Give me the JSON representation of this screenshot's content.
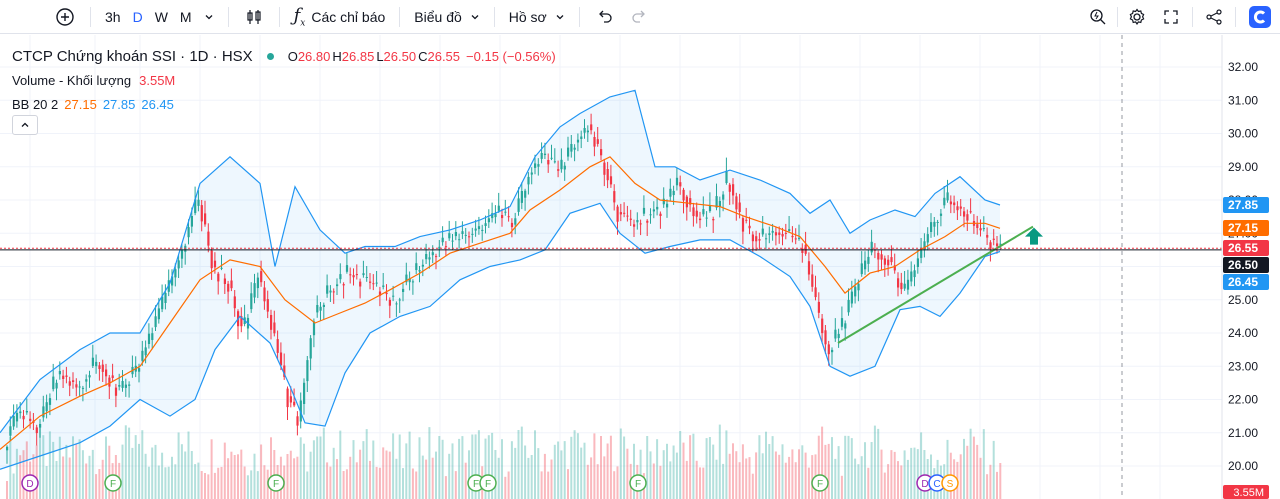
{
  "toolbar": {
    "intervals": [
      "3h",
      "D",
      "W",
      "M"
    ],
    "active_interval": "D",
    "indicators_label": "Các chỉ báo",
    "chart_type_label": "Biểu đồ",
    "profile_label": "Hồ sơ"
  },
  "legend": {
    "title": "CTCP Chứng khoán SSI · 1D · HSX",
    "o_label": "O",
    "o_value": "26.80",
    "h_label": "H",
    "h_value": "26.85",
    "l_label": "L",
    "l_value": "26.50",
    "c_label": "C",
    "c_value": "26.55",
    "change": "−0.15 (−0.56%)",
    "volume_label": "Volume - Khối lượng",
    "volume_value": "3.55M",
    "bb_label": "BB 20 2",
    "bb_mid": "27.15",
    "bb_upper": "27.85",
    "bb_lower": "26.45"
  },
  "colors": {
    "up": "#26a69a",
    "down": "#f23645",
    "bb_band": "#2196f3",
    "bb_basis": "#ff6d00",
    "trendline": "#4caf50",
    "arrow": "#089981"
  },
  "chart_data": {
    "type": "candlestick",
    "ylim": [
      19.8,
      32.4
    ],
    "yticks": [
      "32.00",
      "31.00",
      "30.00",
      "29.00",
      "28.00",
      "27.00",
      "26.00",
      "25.00",
      "24.00",
      "23.00",
      "22.00",
      "21.00",
      "20.00"
    ],
    "price_tags": [
      {
        "label": "27.85",
        "value": 27.85,
        "color": "#2196f3"
      },
      {
        "label": "27.15",
        "value": 27.15,
        "color": "#ff6d00"
      },
      {
        "label": "26.55",
        "value": 26.55,
        "color": "#f23645"
      },
      {
        "label": "26.50",
        "value": 26.5,
        "color": "#131722"
      },
      {
        "label": "26.45",
        "value": 26.45,
        "color": "#2196f3"
      }
    ],
    "volume_tag": "3.55M",
    "close_path": [
      [
        0,
        20.2
      ],
      [
        20,
        21.6
      ],
      [
        40,
        21.2
      ],
      [
        60,
        22.8
      ],
      [
        80,
        22.4
      ],
      [
        100,
        23.2
      ],
      [
        120,
        22.2
      ],
      [
        140,
        23.0
      ],
      [
        160,
        24.5
      ],
      [
        180,
        26.2
      ],
      [
        200,
        28.0
      ],
      [
        215,
        26.0
      ],
      [
        230,
        25.5
      ],
      [
        245,
        24.0
      ],
      [
        260,
        25.8
      ],
      [
        275,
        24.0
      ],
      [
        290,
        22.0
      ],
      [
        300,
        21.3
      ],
      [
        315,
        24.5
      ],
      [
        330,
        25.3
      ],
      [
        350,
        25.8
      ],
      [
        370,
        25.5
      ],
      [
        395,
        25.0
      ],
      [
        420,
        26.0
      ],
      [
        440,
        26.6
      ],
      [
        460,
        26.9
      ],
      [
        480,
        27.1
      ],
      [
        500,
        27.6
      ],
      [
        515,
        27.3
      ],
      [
        530,
        28.8
      ],
      [
        545,
        29.3
      ],
      [
        560,
        28.8
      ],
      [
        575,
        29.7
      ],
      [
        590,
        30.2
      ],
      [
        605,
        29.1
      ],
      [
        620,
        27.6
      ],
      [
        635,
        27.3
      ],
      [
        650,
        27.6
      ],
      [
        665,
        27.8
      ],
      [
        680,
        28.6
      ],
      [
        700,
        27.4
      ],
      [
        715,
        27.6
      ],
      [
        730,
        28.7
      ],
      [
        745,
        27.3
      ],
      [
        760,
        26.8
      ],
      [
        775,
        27.1
      ],
      [
        790,
        26.9
      ],
      [
        805,
        26.5
      ],
      [
        815,
        25.2
      ],
      [
        830,
        23.5
      ],
      [
        845,
        24.3
      ],
      [
        860,
        25.6
      ],
      [
        875,
        26.6
      ],
      [
        890,
        26.2
      ],
      [
        905,
        25.1
      ],
      [
        920,
        26.2
      ],
      [
        935,
        27.4
      ],
      [
        950,
        28.0
      ],
      [
        965,
        27.7
      ],
      [
        980,
        27.1
      ],
      [
        1000,
        26.6
      ]
    ],
    "bb_upper": [
      [
        0,
        21.0
      ],
      [
        40,
        22.6
      ],
      [
        80,
        23.5
      ],
      [
        110,
        24.0
      ],
      [
        140,
        24.0
      ],
      [
        170,
        25.5
      ],
      [
        200,
        28.5
      ],
      [
        230,
        29.3
      ],
      [
        260,
        28.5
      ],
      [
        275,
        26.0
      ],
      [
        295,
        28.4
      ],
      [
        320,
        27.1
      ],
      [
        345,
        26.4
      ],
      [
        365,
        26.6
      ],
      [
        395,
        26.6
      ],
      [
        420,
        26.9
      ],
      [
        450,
        27.1
      ],
      [
        480,
        27.4
      ],
      [
        510,
        27.8
      ],
      [
        535,
        29.3
      ],
      [
        560,
        30.2
      ],
      [
        580,
        30.6
      ],
      [
        610,
        31.1
      ],
      [
        635,
        31.3
      ],
      [
        655,
        29.0
      ],
      [
        675,
        29.0
      ],
      [
        700,
        28.6
      ],
      [
        730,
        28.9
      ],
      [
        760,
        28.6
      ],
      [
        790,
        28.2
      ],
      [
        810,
        27.6
      ],
      [
        830,
        28.0
      ],
      [
        850,
        27.0
      ],
      [
        870,
        27.4
      ],
      [
        895,
        27.7
      ],
      [
        915,
        27.5
      ],
      [
        935,
        28.2
      ],
      [
        960,
        28.7
      ],
      [
        985,
        28.0
      ],
      [
        1000,
        27.85
      ]
    ],
    "bb_basis": [
      [
        0,
        20.5
      ],
      [
        40,
        21.5
      ],
      [
        80,
        22.1
      ],
      [
        110,
        22.5
      ],
      [
        140,
        23.0
      ],
      [
        170,
        24.3
      ],
      [
        200,
        25.6
      ],
      [
        230,
        26.2
      ],
      [
        260,
        26.0
      ],
      [
        285,
        25.0
      ],
      [
        315,
        24.3
      ],
      [
        340,
        24.6
      ],
      [
        365,
        24.9
      ],
      [
        390,
        25.3
      ],
      [
        420,
        25.8
      ],
      [
        450,
        26.4
      ],
      [
        480,
        26.7
      ],
      [
        510,
        27.0
      ],
      [
        530,
        27.7
      ],
      [
        560,
        28.3
      ],
      [
        590,
        29.0
      ],
      [
        610,
        29.3
      ],
      [
        635,
        28.5
      ],
      [
        660,
        28.0
      ],
      [
        690,
        27.9
      ],
      [
        720,
        27.8
      ],
      [
        745,
        27.5
      ],
      [
        775,
        27.2
      ],
      [
        800,
        26.9
      ],
      [
        825,
        26.0
      ],
      [
        845,
        25.2
      ],
      [
        870,
        25.8
      ],
      [
        895,
        26.0
      ],
      [
        920,
        26.5
      ],
      [
        945,
        26.9
      ],
      [
        965,
        27.3
      ],
      [
        985,
        27.3
      ],
      [
        1000,
        27.15
      ]
    ],
    "bb_lower": [
      [
        0,
        19.9
      ],
      [
        40,
        20.3
      ],
      [
        80,
        20.7
      ],
      [
        110,
        21.2
      ],
      [
        140,
        22.0
      ],
      [
        170,
        21.5
      ],
      [
        195,
        22.0
      ],
      [
        215,
        23.5
      ],
      [
        240,
        24.5
      ],
      [
        270,
        23.7
      ],
      [
        290,
        22.4
      ],
      [
        305,
        21.3
      ],
      [
        325,
        21.2
      ],
      [
        345,
        22.8
      ],
      [
        370,
        24.0
      ],
      [
        400,
        24.5
      ],
      [
        430,
        24.8
      ],
      [
        460,
        25.6
      ],
      [
        490,
        26.0
      ],
      [
        520,
        26.2
      ],
      [
        545,
        26.5
      ],
      [
        570,
        27.6
      ],
      [
        600,
        27.9
      ],
      [
        620,
        27.0
      ],
      [
        645,
        26.4
      ],
      [
        670,
        26.6
      ],
      [
        700,
        26.8
      ],
      [
        730,
        26.8
      ],
      [
        760,
        26.3
      ],
      [
        790,
        25.7
      ],
      [
        810,
        24.8
      ],
      [
        830,
        23.0
      ],
      [
        850,
        22.7
      ],
      [
        875,
        23.0
      ],
      [
        900,
        24.7
      ],
      [
        920,
        24.8
      ],
      [
        940,
        24.5
      ],
      [
        960,
        25.2
      ],
      [
        985,
        26.3
      ],
      [
        1000,
        26.45
      ]
    ],
    "trendline": [
      [
        838,
        23.7
      ],
      [
        1033,
        27.2
      ]
    ],
    "event_markers": [
      {
        "x": 30,
        "label": "D",
        "color": "#9c27b0"
      },
      {
        "x": 113,
        "label": "F",
        "color": "#4caf50"
      },
      {
        "x": 276,
        "label": "F",
        "color": "#4caf50"
      },
      {
        "x": 476,
        "label": "F",
        "color": "#4caf50"
      },
      {
        "x": 488,
        "label": "F",
        "color": "#4caf50"
      },
      {
        "x": 638,
        "label": "F",
        "color": "#4caf50"
      },
      {
        "x": 820,
        "label": "F",
        "color": "#4caf50"
      },
      {
        "x": 925,
        "label": "D",
        "color": "#9c27b0"
      },
      {
        "x": 937,
        "label": "C",
        "color": "#2962ff"
      },
      {
        "x": 950,
        "label": "S",
        "color": "#ff9800"
      }
    ]
  }
}
